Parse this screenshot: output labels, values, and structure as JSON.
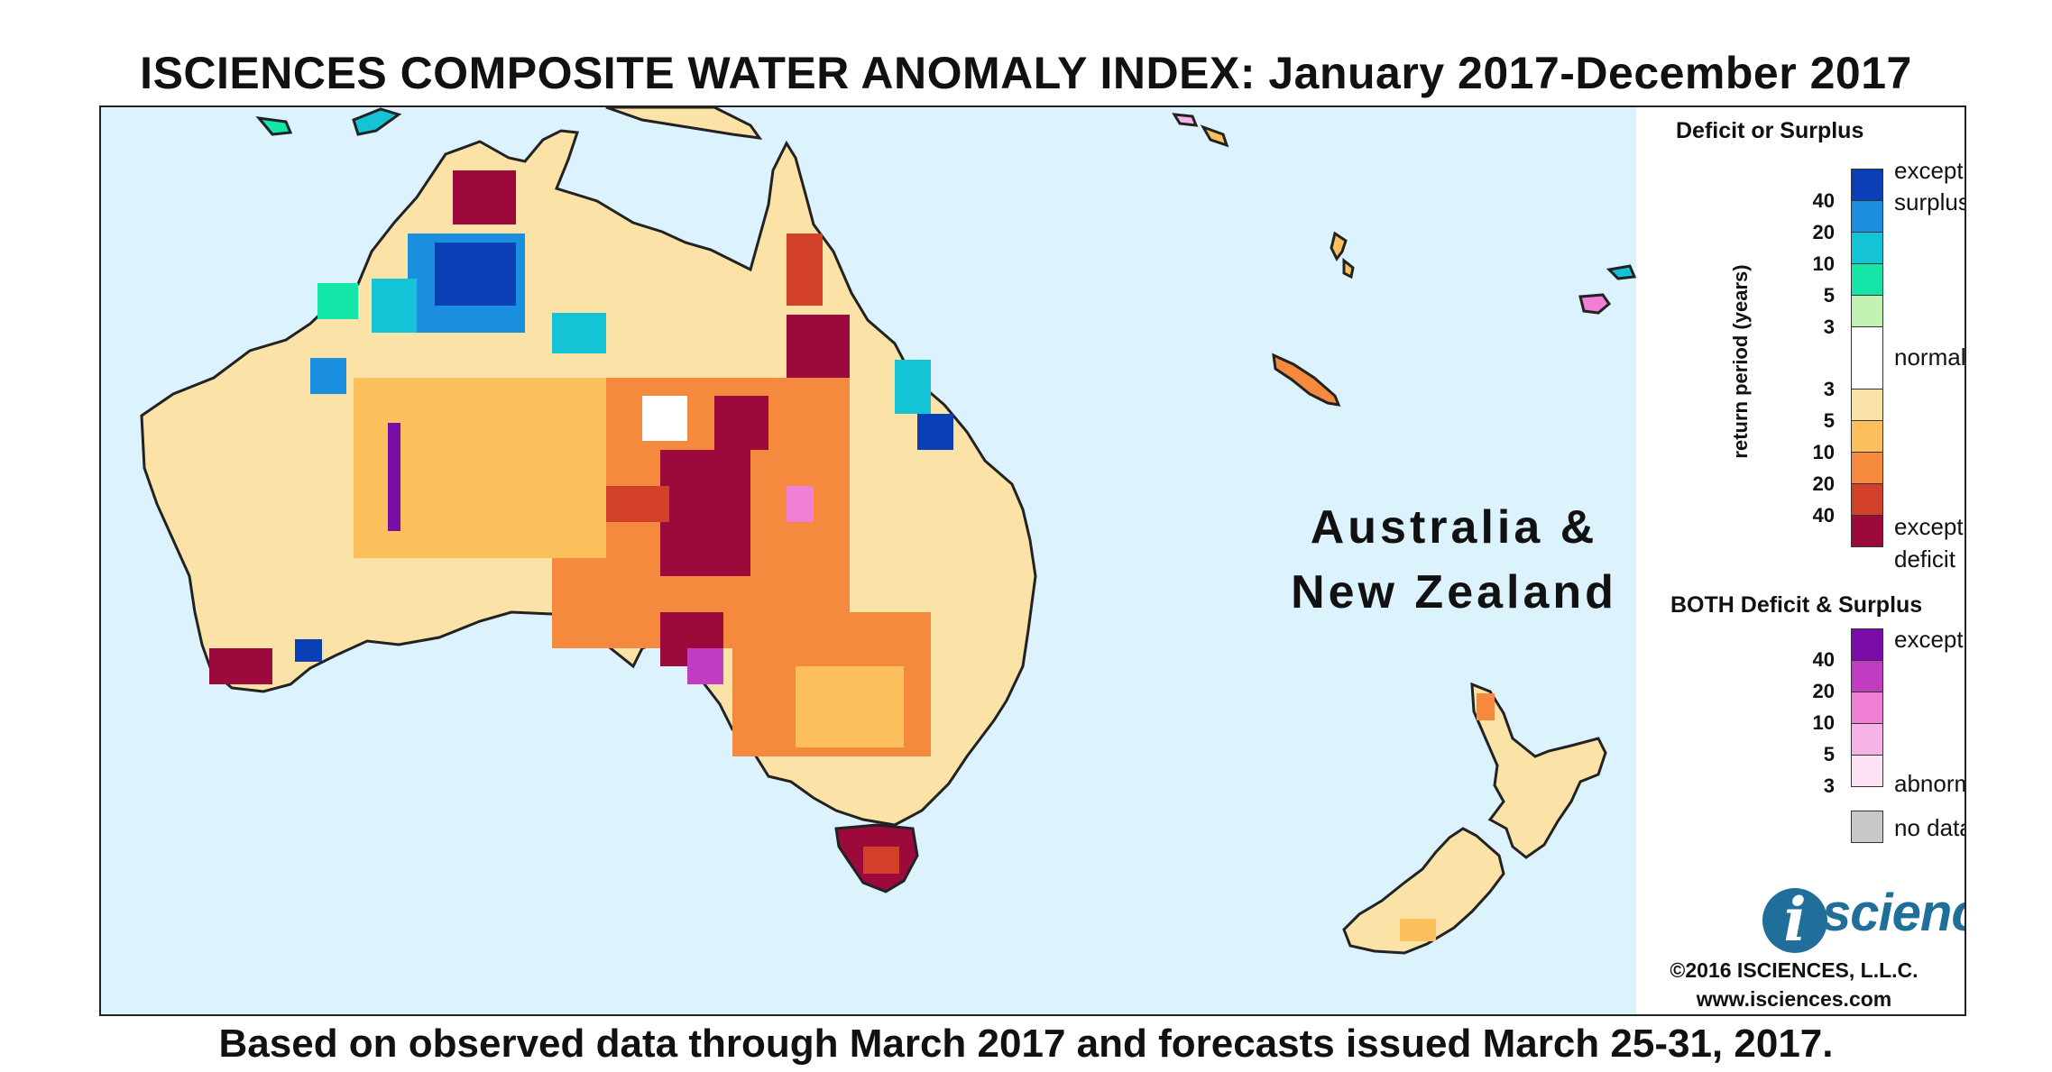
{
  "title": "ISCIENCES COMPOSITE WATER ANOMALY INDEX: January 2017-December 2017",
  "footer": "Based on observed data through March 2017 and forecasts issued March 25-31, 2017.",
  "map": {
    "region_label_line1": "Australia &",
    "region_label_line2": "New Zealand",
    "ocean_color": "#dcf2fd",
    "land_base_color": "#fbe2a6",
    "outline_color": "#222222"
  },
  "legend": {
    "heading_single": "Deficit or Surplus",
    "axis_label": "return period (years)",
    "label_exceptional_surplus_1": "exceptional",
    "label_exceptional_surplus_2": "surplus",
    "label_normal": "normal",
    "label_exceptional_deficit_1": "exceptional",
    "label_exceptional_deficit_2": "deficit",
    "surplus_ticks": [
      "40",
      "20",
      "10",
      "5",
      "3"
    ],
    "deficit_ticks": [
      "3",
      "5",
      "10",
      "20",
      "40"
    ],
    "surplus_colors": [
      "#0a3fb5",
      "#1a8fe0",
      "#14c4d6",
      "#14e6a8",
      "#c2f2b4"
    ],
    "normal_color": "#ffffff",
    "deficit_colors": [
      "#fbe2a6",
      "#fbbf5c",
      "#f58a3e",
      "#d2402a",
      "#9c0a3c"
    ],
    "heading_both": "BOTH Deficit & Surplus",
    "label_both_exceptional": "exceptional",
    "label_both_abnormal": "abnormal",
    "both_ticks": [
      "40",
      "20",
      "10",
      "5",
      "3"
    ],
    "both_colors": [
      "#7a0ca8",
      "#c03cc0",
      "#f07fd6",
      "#f6b3e8",
      "#fde1f4"
    ],
    "no_data_label": "no data",
    "no_data_color": "#c8c8c8",
    "logo_i": "i",
    "logo_text": "sciences",
    "logo_color": "#1f6f9a",
    "copyright": "©2016 ISCIENCES, L.L.C.",
    "website": "www.isciences.com"
  }
}
